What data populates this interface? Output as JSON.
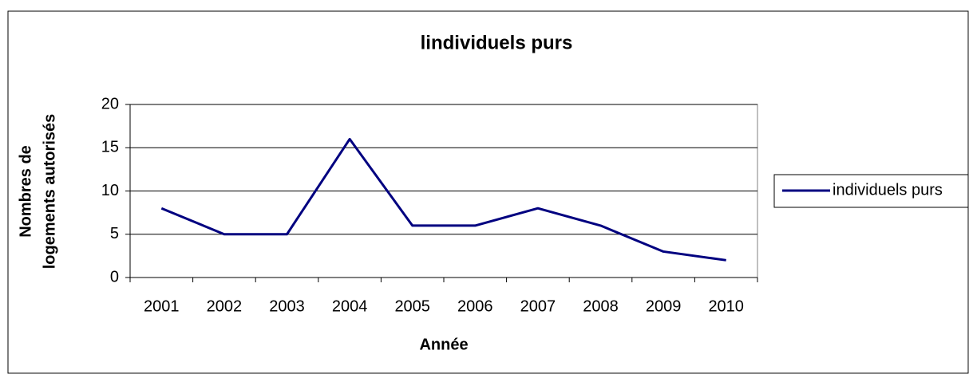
{
  "chart_data": {
    "type": "line",
    "title": "lindividuels purs",
    "xlabel": "Année",
    "ylabel": [
      "Nombres de",
      "logements autorisés"
    ],
    "categories": [
      "2001",
      "2002",
      "2003",
      "2004",
      "2005",
      "2006",
      "2007",
      "2008",
      "2009",
      "2010"
    ],
    "series": [
      {
        "name": "individuels purs",
        "color": "#000080",
        "values": [
          8,
          5,
          5,
          16,
          6,
          6,
          8,
          6,
          3,
          2
        ]
      }
    ],
    "ylim": [
      0,
      20
    ],
    "yticks": [
      0,
      5,
      10,
      15,
      20
    ],
    "grid": true,
    "legend": "right"
  }
}
